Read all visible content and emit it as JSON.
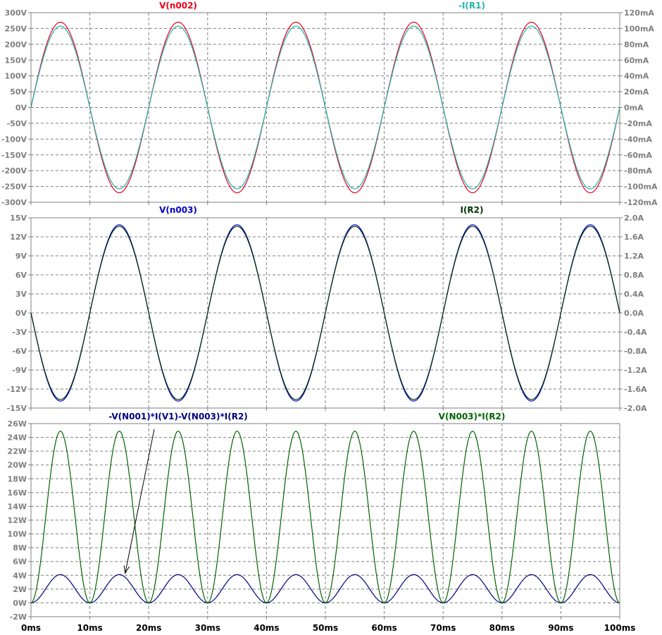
{
  "chart_data": [
    {
      "type": "line",
      "panel": "top",
      "x_axis": {
        "unit": "ms",
        "range": [
          0,
          100
        ],
        "ticks": [
          0,
          10,
          20,
          30,
          40,
          50,
          60,
          70,
          80,
          90,
          100
        ]
      },
      "left_axis": {
        "range": [
          -300,
          300
        ],
        "tick_values": [
          300,
          250,
          200,
          150,
          100,
          50,
          0,
          -50,
          -100,
          -150,
          -200,
          -250,
          -300
        ],
        "tick_labels": [
          "300V",
          "250V",
          "200V",
          "150V",
          "100V",
          "50V",
          "0V",
          "-50V",
          "-100V",
          "-150V",
          "-200V",
          "-250V",
          "-300V"
        ]
      },
      "right_axis": {
        "range": [
          -120,
          120
        ],
        "tick_values": [
          120,
          100,
          80,
          60,
          40,
          20,
          0,
          -20,
          -40,
          -60,
          -80,
          -100,
          -120
        ],
        "tick_labels": [
          "120mA",
          "100mA",
          "80mA",
          "60mA",
          "40mA",
          "20mA",
          "0mA",
          "-20mA",
          "-40mA",
          "-60mA",
          "-80mA",
          "-100mA",
          "-120mA"
        ]
      },
      "grid": true,
      "series": [
        {
          "name": "V(n002)",
          "color": "#e8001c",
          "axis": "left",
          "shape": "sine",
          "amplitude": 270,
          "frequency_hz": 50,
          "phase_deg": 0
        },
        {
          "name": "-I(R1)",
          "color": "#20b2aa",
          "axis": "right",
          "shape": "sine",
          "amplitude": 103,
          "frequency_hz": 50,
          "phase_deg": 0
        }
      ]
    },
    {
      "type": "line",
      "panel": "middle",
      "x_axis": {
        "unit": "ms",
        "range": [
          0,
          100
        ],
        "ticks": [
          0,
          10,
          20,
          30,
          40,
          50,
          60,
          70,
          80,
          90,
          100
        ]
      },
      "left_axis": {
        "range": [
          -15,
          15
        ],
        "tick_values": [
          15,
          12,
          9,
          6,
          3,
          0,
          -3,
          -6,
          -9,
          -12,
          -15
        ],
        "tick_labels": [
          "15V",
          "12V",
          "9V",
          "6V",
          "3V",
          "0V",
          "-3V",
          "-6V",
          "-9V",
          "-12V",
          "-15V"
        ]
      },
      "right_axis": {
        "range": [
          -2.0,
          2.0
        ],
        "tick_values": [
          2.0,
          1.6,
          1.2,
          0.8,
          0.4,
          0.0,
          -0.4,
          -0.8,
          -1.2,
          -1.6,
          -2.0
        ],
        "tick_labels": [
          "2.0A",
          "1.6A",
          "1.2A",
          "0.8A",
          "0.4A",
          "0.0A",
          "-0.4A",
          "-0.8A",
          "-1.2A",
          "-1.6A",
          "-2.0A"
        ]
      },
      "grid": true,
      "series": [
        {
          "name": "V(n003)",
          "color": "#0000cc",
          "axis": "left",
          "shape": "sine",
          "amplitude": -13.9,
          "frequency_hz": 50,
          "phase_deg": 0
        },
        {
          "name": "I(R2)",
          "color": "#003300",
          "axis": "right",
          "shape": "sine",
          "amplitude": -1.82,
          "frequency_hz": 50,
          "phase_deg": 0
        }
      ]
    },
    {
      "type": "line",
      "panel": "bottom",
      "x_axis": {
        "unit": "ms",
        "range": [
          0,
          100
        ],
        "ticks": [
          0,
          10,
          20,
          30,
          40,
          50,
          60,
          70,
          80,
          90,
          100
        ],
        "tick_labels": [
          "0ms",
          "10ms",
          "20ms",
          "30ms",
          "40ms",
          "50ms",
          "60ms",
          "70ms",
          "80ms",
          "90ms",
          "100ms"
        ]
      },
      "left_axis": {
        "range": [
          -2,
          26
        ],
        "tick_values": [
          26,
          24,
          22,
          20,
          18,
          16,
          14,
          12,
          10,
          8,
          6,
          4,
          2,
          0,
          -2
        ],
        "tick_labels": [
          "26W",
          "24W",
          "22W",
          "20W",
          "18W",
          "16W",
          "14W",
          "12W",
          "10W",
          "8W",
          "6W",
          "4W",
          "2W",
          "0W",
          "-2W"
        ]
      },
      "grid": true,
      "series": [
        {
          "name": "-V(N001)*I(V1)-V(N003)*I(R2)",
          "color": "#000080",
          "shape": "sin2",
          "peak": 4.1,
          "frequency_hz": 50
        },
        {
          "name": "V(N003)*I(R2)",
          "color": "#006400",
          "shape": "sin2",
          "peak": 24.9,
          "frequency_hz": 50
        }
      ],
      "annotation": {
        "type": "arrow",
        "label_ref": "-V(N001)*I(V1)-V(N003)*I(R2)",
        "points_to": {
          "x_ms": 16,
          "y": 4.0
        }
      }
    }
  ]
}
